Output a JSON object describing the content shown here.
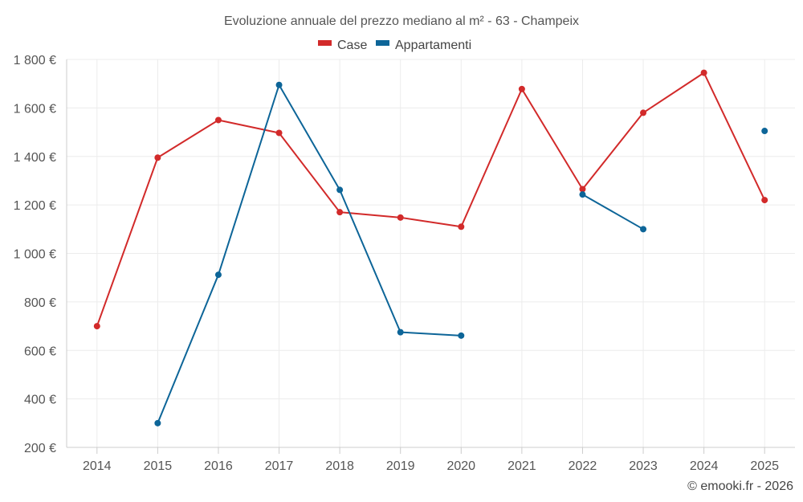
{
  "chart_data": {
    "type": "line",
    "title": "Evoluzione annuale del prezzo mediano al m² - 63 - Champeix",
    "categories": [
      "2014",
      "2015",
      "2016",
      "2017",
      "2018",
      "2019",
      "2020",
      "2021",
      "2022",
      "2023",
      "2024",
      "2025"
    ],
    "y_ticks": [
      200,
      400,
      600,
      800,
      1000,
      1200,
      1400,
      1600,
      1800
    ],
    "y_tick_labels": [
      "200 €",
      "400 €",
      "600 €",
      "800 €",
      "1 000 €",
      "1 200 €",
      "1 400 €",
      "1 600 €",
      "1 800 €"
    ],
    "ylim": [
      200,
      1800
    ],
    "grid": true,
    "legend_position": "top-center",
    "series": [
      {
        "name": "Case",
        "color": "#d22a2a",
        "values": [
          700,
          1395,
          1550,
          1497,
          1170,
          1148,
          1110,
          1678,
          1265,
          1580,
          1745,
          1220
        ]
      },
      {
        "name": "Appartamenti",
        "color": "#0d6598",
        "values": [
          null,
          300,
          912,
          1695,
          1262,
          675,
          661,
          null,
          1243,
          1100,
          null,
          1505
        ]
      }
    ],
    "credit": "© emooki.fr - 2026"
  }
}
